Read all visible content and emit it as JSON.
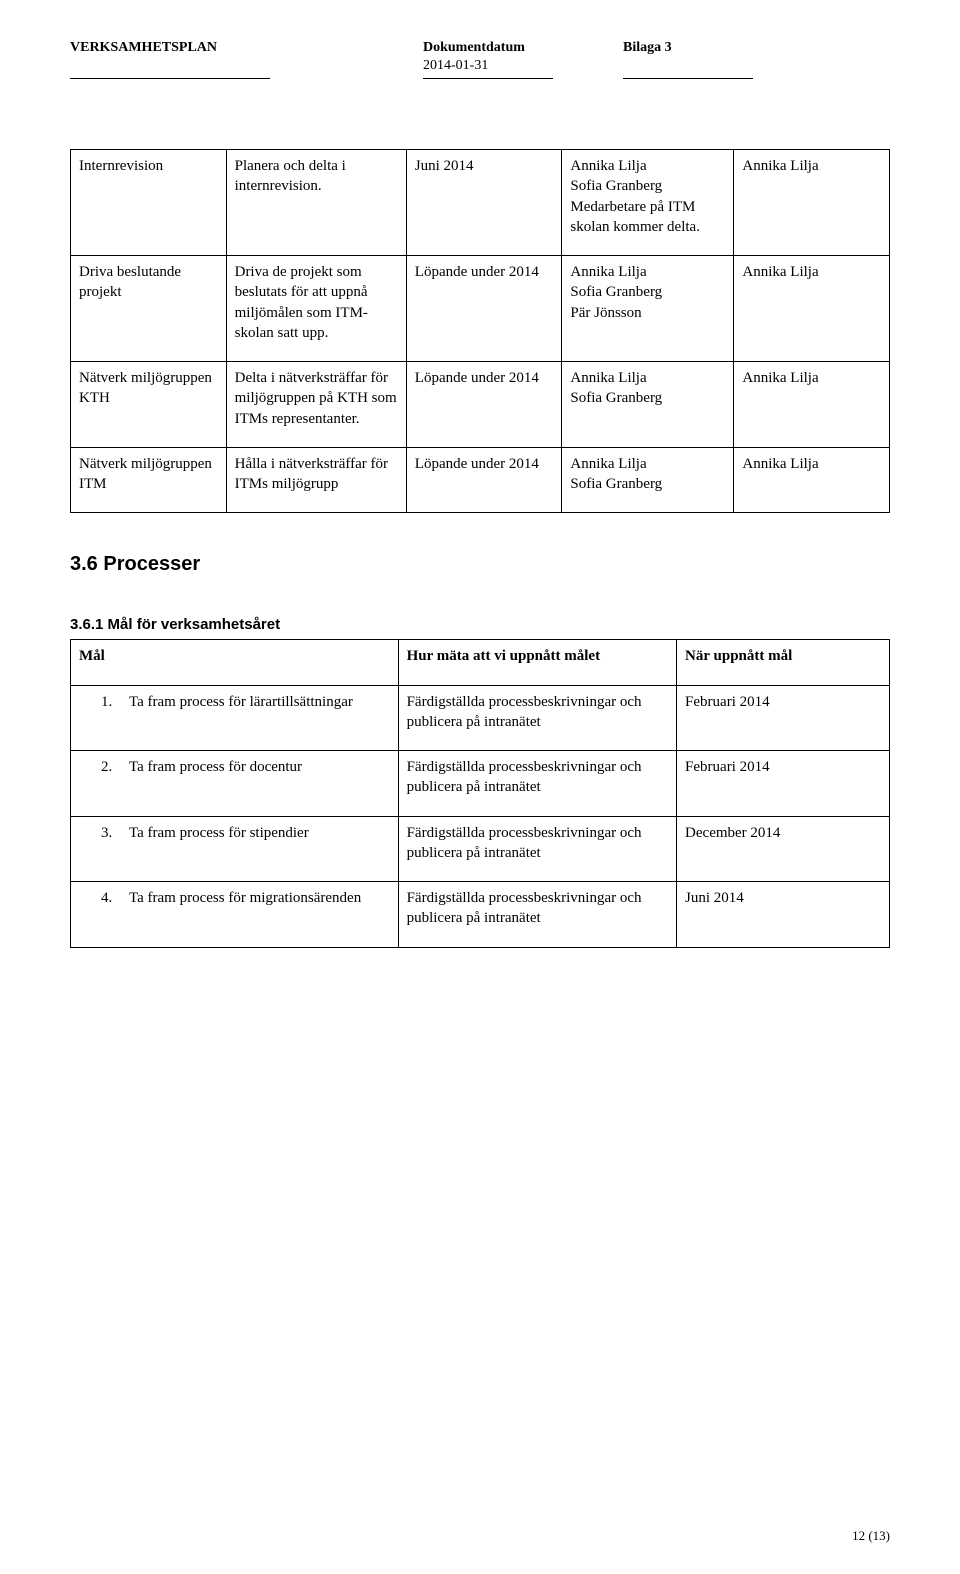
{
  "header": {
    "title_left": "VERKSAMHETSPLAN",
    "title_mid": "Dokumentdatum",
    "title_right": "Bilaga 3",
    "date": "2014-01-31"
  },
  "table1": {
    "rows": [
      {
        "c1": "Internrevision",
        "c2": "Planera och delta i internrevision.",
        "c3": "Juni 2014",
        "c4": "Annika Lilja\nSofia Granberg\nMedarbetare på ITM skolan kommer delta.",
        "c5": "Annika Lilja"
      },
      {
        "c1": "Driva beslutande projekt",
        "c2": "Driva de projekt som beslutats för att uppnå miljömålen som ITM-skolan satt upp.",
        "c3": "Löpande under 2014",
        "c4": "Annika Lilja\nSofia Granberg\nPär Jönsson",
        "c5": "Annika Lilja"
      },
      {
        "c1": "Nätverk miljögruppen KTH",
        "c2": "Delta i nätverksträffar för miljögruppen på KTH som ITMs representanter.",
        "c3": "Löpande under 2014",
        "c4": "Annika Lilja\nSofia Granberg",
        "c5": "Annika Lilja"
      },
      {
        "c1": "Nätverk miljögruppen ITM",
        "c2": "Hålla i nätverksträffar för ITMs miljögrupp",
        "c3": "Löpande under 2014",
        "c4": "Annika Lilja\nSofia Granberg",
        "c5": "Annika Lilja"
      }
    ]
  },
  "sections": {
    "h2": "3.6    Processer",
    "h3": "3.6.1    Mål för verksamhetsåret"
  },
  "goals": {
    "headers": {
      "h1": "Mål",
      "h2": "Hur mäta att vi uppnått målet",
      "h3": "När uppnått mål"
    },
    "rows": [
      {
        "num": "1.",
        "label": "Ta fram process för lärartillsättningar",
        "measure": "Färdigställda processbeskrivningar och publicera på intranätet",
        "when": "Februari 2014"
      },
      {
        "num": "2.",
        "label": "Ta fram process för docentur",
        "measure": "Färdigställda processbeskrivningar och publicera på intranätet",
        "when": "Februari 2014"
      },
      {
        "num": "3.",
        "label": "Ta fram process för stipendier",
        "measure": "Färdigställda processbeskrivningar och publicera på intranätet",
        "when": "December 2014"
      },
      {
        "num": "4.",
        "label": "Ta fram process för migrationsärenden",
        "measure": "Färdigställda processbeskrivningar och publicera på intranätet",
        "when": "Juni 2014"
      }
    ]
  },
  "footer": "12 (13)"
}
